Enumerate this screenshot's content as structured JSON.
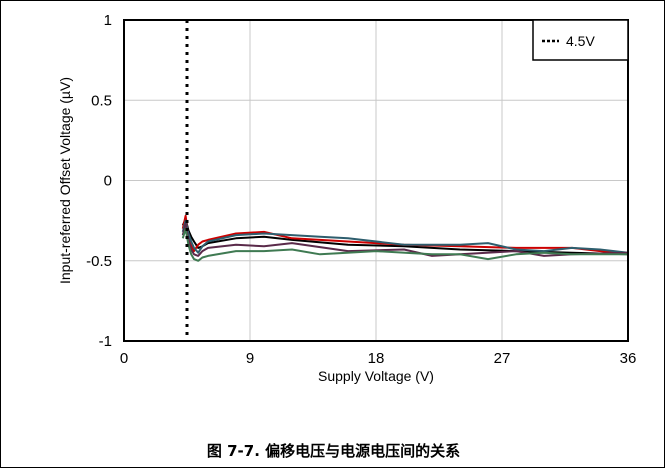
{
  "caption": "图 7-7. 偏移电压与电源电压间的关系",
  "chart_data": {
    "type": "line",
    "title": "",
    "xlabel": "Supply Voltage (V)",
    "ylabel": "Input-referred Offset Voltage (µV)",
    "xlim": [
      0,
      36
    ],
    "ylim": [
      -1,
      1
    ],
    "xticks": [
      0,
      9,
      18,
      27,
      36
    ],
    "yticks": [
      -1,
      -0.5,
      0,
      0.5,
      1
    ],
    "xtick_labels": [
      "0",
      "9",
      "18",
      "27",
      "36"
    ],
    "ytick_labels": [
      "-1",
      "-0.5",
      "0",
      "0.5",
      "1"
    ],
    "grid": true,
    "legend_position": "top-right",
    "legend": [
      "4.5V"
    ],
    "reference_line": {
      "label": "4.5V",
      "x": 4.5,
      "style": "dotted",
      "color": "#000000"
    },
    "series": [
      {
        "color": "#000000",
        "x": [
          4.2,
          4.4,
          4.6,
          4.8,
          5.0,
          5.3,
          5.6,
          6,
          8,
          10,
          12,
          16,
          20,
          24,
          28,
          32,
          36
        ],
        "y": [
          -0.28,
          -0.24,
          -0.31,
          -0.35,
          -0.38,
          -0.42,
          -0.41,
          -0.39,
          -0.36,
          -0.35,
          -0.37,
          -0.4,
          -0.41,
          -0.43,
          -0.44,
          -0.45,
          -0.46
        ]
      },
      {
        "color": "#cc0000",
        "x": [
          4.2,
          4.4,
          4.6,
          4.8,
          5.0,
          5.3,
          5.6,
          6,
          8,
          10,
          12,
          16,
          20,
          24,
          28,
          32,
          36
        ],
        "y": [
          -0.3,
          -0.22,
          -0.35,
          -0.4,
          -0.44,
          -0.4,
          -0.38,
          -0.37,
          -0.33,
          -0.32,
          -0.36,
          -0.38,
          -0.4,
          -0.41,
          -0.42,
          -0.42,
          -0.46
        ]
      },
      {
        "color": "#2e5e6e",
        "x": [
          4.2,
          4.4,
          4.6,
          4.8,
          5.0,
          5.3,
          5.6,
          6,
          8,
          10,
          12,
          14,
          16,
          20,
          24,
          26,
          28,
          30,
          32,
          34,
          36
        ],
        "y": [
          -0.32,
          -0.25,
          -0.33,
          -0.38,
          -0.42,
          -0.45,
          -0.41,
          -0.38,
          -0.34,
          -0.33,
          -0.34,
          -0.35,
          -0.36,
          -0.4,
          -0.4,
          -0.39,
          -0.43,
          -0.44,
          -0.42,
          -0.43,
          -0.45
        ]
      },
      {
        "color": "#5a2a4a",
        "x": [
          4.2,
          4.4,
          4.6,
          4.8,
          5.0,
          5.3,
          5.6,
          6,
          8,
          10,
          12,
          16,
          20,
          22,
          24,
          28,
          30,
          32,
          36
        ],
        "y": [
          -0.34,
          -0.27,
          -0.37,
          -0.43,
          -0.46,
          -0.47,
          -0.44,
          -0.42,
          -0.4,
          -0.41,
          -0.39,
          -0.44,
          -0.43,
          -0.47,
          -0.46,
          -0.44,
          -0.47,
          -0.46,
          -0.45
        ]
      },
      {
        "color": "#3f7a52",
        "x": [
          4.2,
          4.4,
          4.6,
          4.8,
          5.0,
          5.3,
          5.6,
          6,
          8,
          10,
          12,
          14,
          18,
          22,
          24,
          26,
          28,
          30,
          32,
          34,
          36
        ],
        "y": [
          -0.36,
          -0.3,
          -0.4,
          -0.46,
          -0.49,
          -0.5,
          -0.48,
          -0.47,
          -0.44,
          -0.44,
          -0.43,
          -0.46,
          -0.44,
          -0.46,
          -0.46,
          -0.49,
          -0.46,
          -0.45,
          -0.46,
          -0.46,
          -0.46
        ]
      }
    ]
  }
}
